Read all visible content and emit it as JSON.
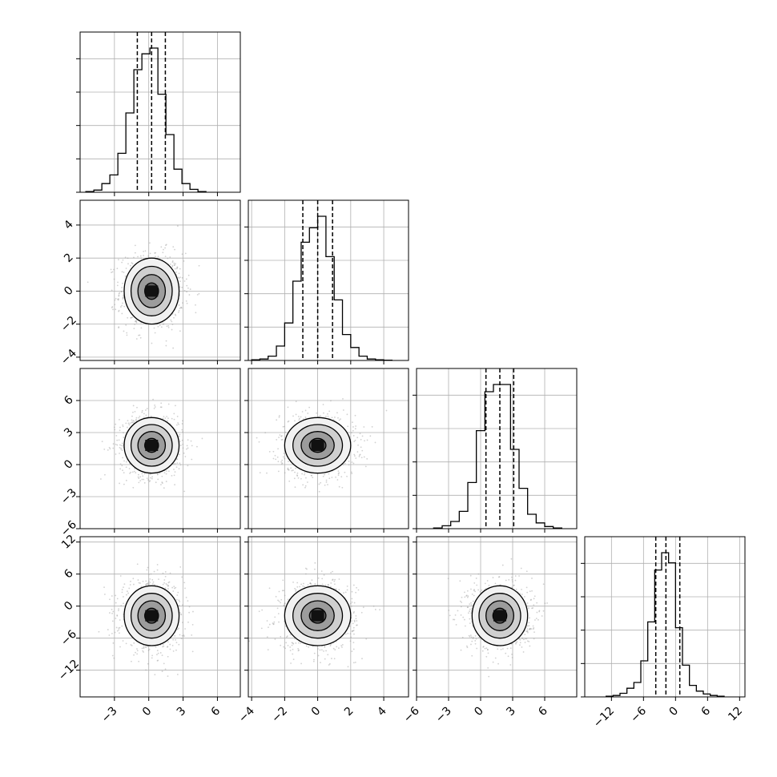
{
  "chart_data": {
    "type": "corner",
    "n_params": 4,
    "quantile_lines": "dashed",
    "grid": true,
    "params": [
      {
        "range": [
          -6.0,
          8.0
        ],
        "tick_values": [
          -3,
          0,
          3,
          6
        ],
        "tick_labels": [
          "−3",
          "0",
          "3",
          "6"
        ],
        "quantiles": [
          -1.0,
          0.25,
          1.45
        ],
        "hist_bins": [
          -5.5,
          -4.8,
          -4.1,
          -3.4,
          -2.7,
          -2.0,
          -1.3,
          -0.6,
          0.1,
          0.8,
          1.5,
          2.2,
          2.9,
          3.6,
          4.3,
          5.0
        ],
        "hist_counts": [
          0.005,
          0.015,
          0.06,
          0.12,
          0.27,
          0.55,
          0.85,
          0.96,
          1.0,
          0.68,
          0.4,
          0.16,
          0.06,
          0.02,
          0.005
        ],
        "hist_label_ticks": [],
        "center": 0.25,
        "sigma": 1.2
      },
      {
        "range": [
          -4.2,
          5.5
        ],
        "tick_values": [
          -4,
          -2,
          0,
          2,
          4
        ],
        "tick_labels": [
          "−4",
          "−2",
          "0",
          "2",
          "4"
        ],
        "quantiles": [
          -0.9,
          0.0,
          0.9
        ],
        "hist_bins": [
          -4.0,
          -3.5,
          -3.0,
          -2.5,
          -2.0,
          -1.5,
          -1.0,
          -0.5,
          0.0,
          0.5,
          1.0,
          1.5,
          2.0,
          2.5,
          3.0,
          3.5,
          4.0,
          4.5
        ],
        "hist_counts": [
          0.005,
          0.01,
          0.03,
          0.1,
          0.26,
          0.55,
          0.82,
          0.92,
          1.0,
          0.72,
          0.42,
          0.18,
          0.09,
          0.03,
          0.01,
          0.005,
          0.002
        ],
        "hist_label_ticks": [],
        "center": 0.0,
        "sigma": 1.0
      },
      {
        "range": [
          -6.0,
          9.0
        ],
        "tick_values": [
          -6,
          -3,
          0,
          3,
          6
        ],
        "tick_labels": [
          "−6",
          "−3",
          "0",
          "3",
          "6"
        ],
        "quantiles": [
          0.5,
          1.8,
          3.1
        ],
        "hist_bins": [
          -4.4,
          -3.6,
          -2.8,
          -2.0,
          -1.2,
          -0.4,
          0.4,
          1.2,
          2.0,
          2.8,
          3.6,
          4.4,
          5.2,
          6.0,
          6.8,
          7.6
        ],
        "hist_counts": [
          0.005,
          0.02,
          0.05,
          0.12,
          0.32,
          0.68,
          0.95,
          1.0,
          1.0,
          0.55,
          0.28,
          0.1,
          0.04,
          0.015,
          0.005
        ],
        "hist_label_ticks": [],
        "center": 1.8,
        "sigma": 1.3
      },
      {
        "range": [
          -17.0,
          13.0
        ],
        "tick_values": [
          -12,
          -6,
          0,
          6,
          12
        ],
        "tick_labels": [
          "−12",
          "−6",
          "0",
          "6",
          "12"
        ],
        "quantiles": [
          -3.7,
          -1.8,
          0.8
        ],
        "hist_bins": [
          -13.0,
          -11.7,
          -10.4,
          -9.1,
          -7.8,
          -6.5,
          -5.2,
          -3.9,
          -2.6,
          -1.3,
          0.0,
          1.3,
          2.6,
          3.9,
          5.2,
          6.5,
          7.8,
          9.1
        ],
        "hist_counts": [
          0.005,
          0.01,
          0.025,
          0.06,
          0.1,
          0.25,
          0.52,
          0.88,
          1.0,
          0.93,
          0.48,
          0.22,
          0.08,
          0.04,
          0.02,
          0.01,
          0.005
        ],
        "hist_label_ticks": [],
        "center": -1.8,
        "sigma": 2.8
      }
    ]
  }
}
